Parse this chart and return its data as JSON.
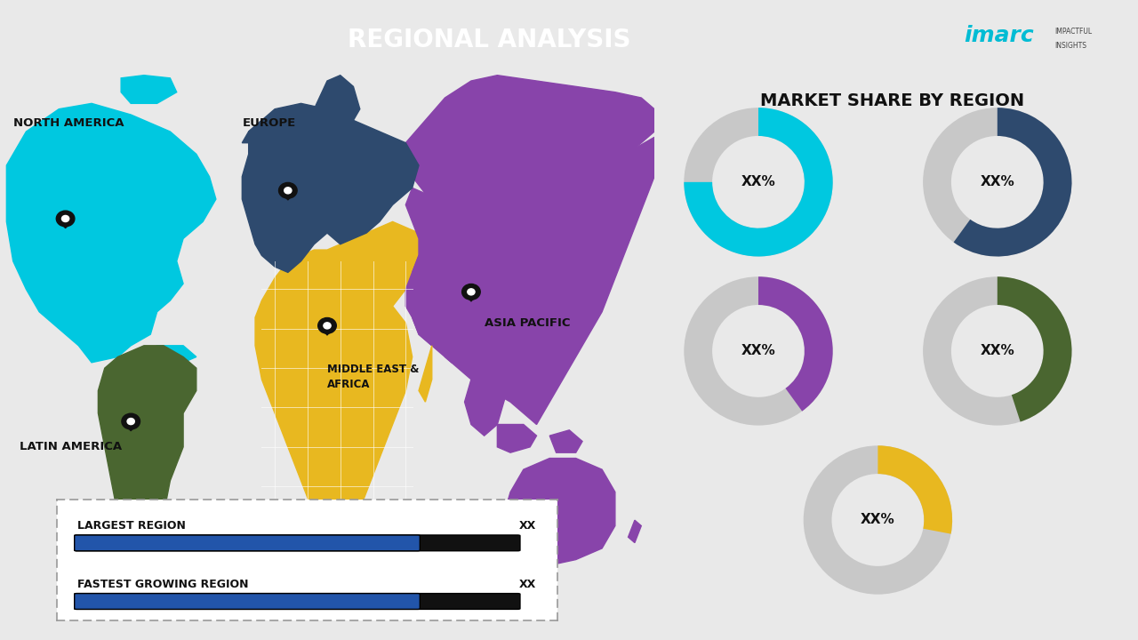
{
  "title": "REGIONAL ANALYSIS",
  "title_bg_color": "#2e4a6e",
  "title_text_color": "#ffffff",
  "bg_color": "#e9e9e9",
  "right_panel_title": "MARKET SHARE BY REGION",
  "divider_color": "#cccccc",
  "donut_data": [
    {
      "label": "XX%",
      "color": "#00c8e0",
      "value": 0.75
    },
    {
      "label": "XX%",
      "color": "#2e4a6e",
      "value": 0.6
    },
    {
      "label": "XX%",
      "color": "#8844aa",
      "value": 0.4
    },
    {
      "label": "XX%",
      "color": "#4a6630",
      "value": 0.45
    },
    {
      "label": "XX%",
      "color": "#e8b820",
      "value": 0.28
    }
  ],
  "donut_gray": "#c8c8c8",
  "legend_items": [
    {
      "label": "LARGEST REGION",
      "value": "XX"
    },
    {
      "label": "FASTEST GROWING REGION",
      "value": "XX"
    }
  ],
  "region_colors": {
    "north_america": "#00c8e0",
    "latin_america": "#4a6630",
    "europe": "#2e4a6e",
    "middle_east_africa": "#e8b820",
    "asia_pacific": "#8844aa"
  },
  "bar_blue": "#2255aa",
  "bar_black": "#111111"
}
